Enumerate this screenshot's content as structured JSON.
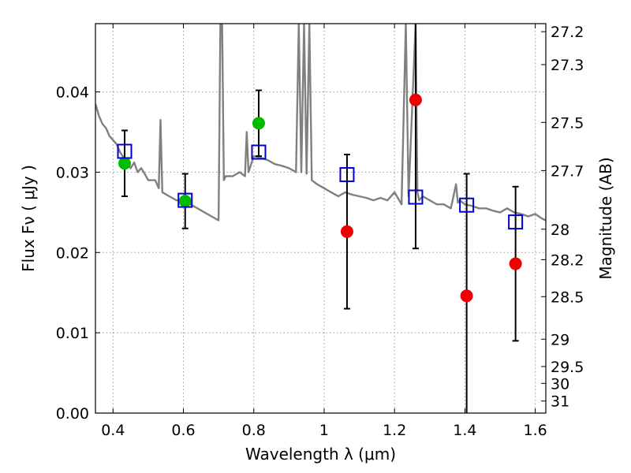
{
  "chart_data": {
    "type": "scatter",
    "xlabel": "Wavelength  λ (μm)",
    "ylabel": "Flux  Fν  ( μJy )",
    "y2label": "Magnitude (AB)",
    "xlim": [
      0.35,
      1.63
    ],
    "ylim": [
      0.0,
      0.0485
    ],
    "grid": true,
    "x_ticks": [
      0.4,
      0.6,
      0.8,
      1.0,
      1.2,
      1.4,
      1.6
    ],
    "x_tick_labels": [
      "0.4",
      "0.6",
      "0.8",
      "1",
      "1.2",
      "1.4",
      "1.6"
    ],
    "y_ticks": [
      0.0,
      0.01,
      0.02,
      0.03,
      0.04
    ],
    "y_tick_labels": [
      "0.00",
      "0.01",
      "0.02",
      "0.03",
      "0.04"
    ],
    "y2_ticks": [
      {
        "flux": 0.0475,
        "label": "27.2"
      },
      {
        "flux": 0.0434,
        "label": "27.3"
      },
      {
        "flux": 0.0362,
        "label": "27.5"
      },
      {
        "flux": 0.0302,
        "label": "27.7"
      },
      {
        "flux": 0.0229,
        "label": "28"
      },
      {
        "flux": 0.0191,
        "label": "28.2"
      },
      {
        "flux": 0.0145,
        "label": "28.5"
      },
      {
        "flux": 0.0092,
        "label": "29"
      },
      {
        "flux": 0.0058,
        "label": "29.5"
      },
      {
        "flux": 0.0037,
        "label": "30"
      },
      {
        "flux": 0.0015,
        "label": "31"
      }
    ],
    "colors": {
      "model": "#808080",
      "green_points": "#00bb00",
      "red_points": "#ee0000",
      "model_photometry": "#0000cc",
      "errorbars": "#000000",
      "grid": "#9a9a9a"
    },
    "series": [
      {
        "type": "line",
        "x": [
          0.35,
          0.36,
          0.37,
          0.38,
          0.39,
          0.4,
          0.41,
          0.42,
          0.43,
          0.44,
          0.45,
          0.46,
          0.47,
          0.48,
          0.49,
          0.5,
          0.52,
          0.53,
          0.535,
          0.54,
          0.56,
          0.58,
          0.6,
          0.62,
          0.64,
          0.66,
          0.68,
          0.7,
          0.705,
          0.71,
          0.715,
          0.72,
          0.74,
          0.76,
          0.775,
          0.78,
          0.785,
          0.8,
          0.82,
          0.84,
          0.86,
          0.88,
          0.9,
          0.92,
          0.928,
          0.935,
          0.943,
          0.95,
          0.958,
          0.965,
          0.98,
          1.0,
          1.02,
          1.04,
          1.06,
          1.08,
          1.1,
          1.12,
          1.14,
          1.16,
          1.18,
          1.2,
          1.22,
          1.232,
          1.24,
          1.26,
          1.265,
          1.27,
          1.28,
          1.3,
          1.32,
          1.34,
          1.36,
          1.375,
          1.38,
          1.385,
          1.4,
          1.42,
          1.44,
          1.46,
          1.48,
          1.5,
          1.52,
          1.54,
          1.56,
          1.58,
          1.6,
          1.62,
          1.63
        ],
        "y": [
          0.0385,
          0.037,
          0.036,
          0.0355,
          0.0345,
          0.034,
          0.0335,
          0.0325,
          0.0318,
          0.031,
          0.0305,
          0.0312,
          0.03,
          0.0305,
          0.0298,
          0.029,
          0.029,
          0.028,
          0.0365,
          0.0275,
          0.027,
          0.0265,
          0.0265,
          0.026,
          0.0255,
          0.025,
          0.0245,
          0.024,
          0.0485,
          0.0485,
          0.029,
          0.0295,
          0.0295,
          0.03,
          0.0295,
          0.035,
          0.03,
          0.032,
          0.0318,
          0.0315,
          0.031,
          0.0308,
          0.0305,
          0.03,
          0.0485,
          0.03,
          0.0485,
          0.0298,
          0.0485,
          0.029,
          0.0285,
          0.028,
          0.0275,
          0.027,
          0.0275,
          0.0272,
          0.027,
          0.0268,
          0.0265,
          0.0268,
          0.0265,
          0.0275,
          0.026,
          0.0485,
          0.027,
          0.0485,
          0.0275,
          0.0265,
          0.027,
          0.0265,
          0.026,
          0.026,
          0.0255,
          0.0285,
          0.0262,
          0.0265,
          0.026,
          0.0258,
          0.0255,
          0.0255,
          0.0252,
          0.025,
          0.0255,
          0.025,
          0.0248,
          0.0245,
          0.0248,
          0.0242,
          0.024
        ]
      },
      {
        "type": "scatter",
        "marker": "circle",
        "x": [
          0.433,
          0.605,
          0.814
        ],
        "y": [
          0.0311,
          0.0264,
          0.0361
        ]
      },
      {
        "type": "scatter",
        "marker": "circle",
        "x": [
          1.065,
          1.26,
          1.405,
          1.544
        ],
        "y": [
          0.0226,
          0.039,
          0.0146,
          0.0186
        ]
      },
      {
        "type": "scatter",
        "marker": "open-square",
        "x": [
          0.433,
          0.605,
          0.814,
          1.065,
          1.26,
          1.405,
          1.544
        ],
        "y": [
          0.0326,
          0.0265,
          0.0325,
          0.0297,
          0.0269,
          0.0259,
          0.0238
        ]
      }
    ],
    "errorbars": [
      {
        "x": 0.433,
        "ylow": 0.027,
        "yhigh": 0.0352
      },
      {
        "x": 0.605,
        "ylow": 0.023,
        "yhigh": 0.0298
      },
      {
        "x": 0.814,
        "ylow": 0.032,
        "yhigh": 0.0402
      },
      {
        "x": 1.065,
        "ylow": 0.013,
        "yhigh": 0.0322
      },
      {
        "x": 1.26,
        "ylow": 0.0205,
        "yhigh": 0.0485
      },
      {
        "x": 1.405,
        "ylow": 0.0,
        "yhigh": 0.0298
      },
      {
        "x": 1.544,
        "ylow": 0.009,
        "yhigh": 0.0282
      }
    ]
  }
}
